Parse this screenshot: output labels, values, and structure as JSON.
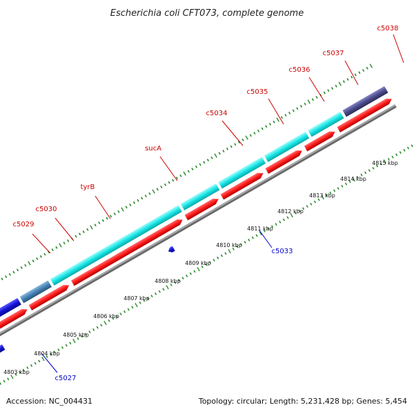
{
  "title": "Escherichia coli CFT073, complete genome",
  "footer": {
    "accession": "Accession: NC_004431",
    "summary": "Topology: circular; Length: 5,231,428 bp; Genes: 5,454"
  },
  "colors": {
    "backbone": "#8c8c8c",
    "tick": "#2d8a2d",
    "forward_label": "#cc0000",
    "reverse_label": "#0000cc",
    "cds": "#ff1a1a",
    "cyan_gene": "#19e6e6",
    "blue_gene": "#1414d4",
    "steel_gene": "#4682b4",
    "olive_gene": "#6b8e23",
    "purple_gene": "#4b4b8c"
  },
  "kbp_labels": [
    "4803 kbp",
    "4804 kbp",
    "4805 kbp",
    "4806 kbp",
    "4807 kbp",
    "4808 kbp",
    "4809 kbp",
    "4810 kbp",
    "4811 kbp",
    "4812 kbp",
    "4813 kbp",
    "4814 kbp",
    "4815 kbp"
  ],
  "forward_labels": [
    "c5029",
    "c5030",
    "tyrB",
    "sucA",
    "c5034",
    "c5035",
    "c5036",
    "c5037",
    "c5038"
  ],
  "reverse_labels": [
    "c5027",
    "c5033"
  ]
}
